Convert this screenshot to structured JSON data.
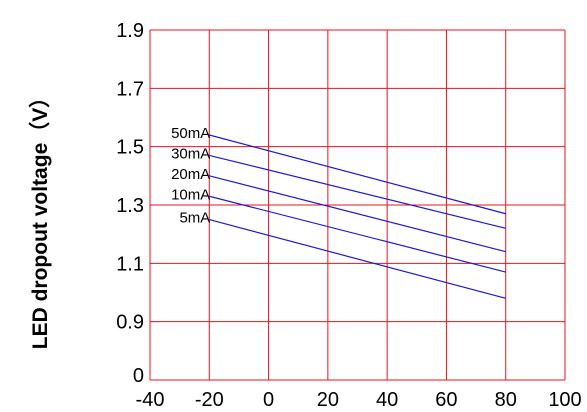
{
  "chart_data": {
    "type": "line",
    "title": "",
    "xlabel": "",
    "ylabel": "LED dropout voltage（V）",
    "xlim": [
      -40,
      100
    ],
    "ylim": [
      0.7,
      1.9
    ],
    "x_ticks": [
      -40,
      -20,
      0,
      20,
      40,
      60,
      80,
      100
    ],
    "y_ticks": [
      {
        "value": 0.7,
        "label": "0"
      },
      {
        "value": 0.9,
        "label": "0.9"
      },
      {
        "value": 1.1,
        "label": "1.1"
      },
      {
        "value": 1.3,
        "label": "1.3"
      },
      {
        "value": 1.5,
        "label": "1.5"
      },
      {
        "value": 1.7,
        "label": "1.7"
      },
      {
        "value": 1.9,
        "label": "1.9"
      }
    ],
    "grid": true,
    "legend": "inline-left",
    "colors": {
      "grid": "#e8141c",
      "series": "#1a1ad6",
      "text": "#000000"
    },
    "series": [
      {
        "name": "50mA",
        "x": [
          -20,
          80
        ],
        "y": [
          1.54,
          1.27
        ]
      },
      {
        "name": "30mA",
        "x": [
          -20,
          80
        ],
        "y": [
          1.47,
          1.22
        ]
      },
      {
        "name": "20mA",
        "x": [
          -20,
          80
        ],
        "y": [
          1.4,
          1.14
        ]
      },
      {
        "name": "10mA",
        "x": [
          -20,
          80
        ],
        "y": [
          1.33,
          1.07
        ]
      },
      {
        "name": "5mA",
        "x": [
          -20,
          80
        ],
        "y": [
          1.25,
          0.98
        ]
      }
    ]
  }
}
